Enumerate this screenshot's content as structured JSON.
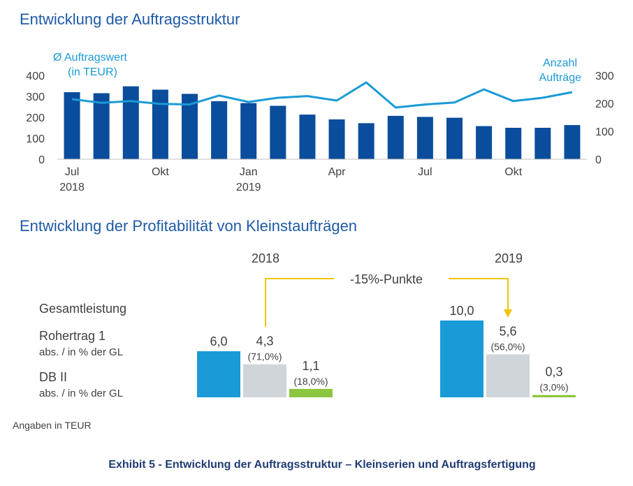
{
  "chart_data": [
    {
      "type": "bar+line",
      "title": "Entwicklung der Auftragsstruktur",
      "y_left_label": [
        "Ø Auftragswert",
        "(in TEUR)"
      ],
      "y_right_label": [
        "Anzahl",
        "Aufträge"
      ],
      "y_left_ticks": [
        "400",
        "300",
        "200",
        "100",
        "0"
      ],
      "y_right_ticks": [
        "300",
        "200",
        "100",
        "0"
      ],
      "ylim_left": [
        0,
        400
      ],
      "ylim_right": [
        0,
        300
      ],
      "x_labels": [
        {
          "index": 0,
          "line1": "Jul",
          "line2": "2018"
        },
        {
          "index": 3,
          "line1": "Okt",
          "line2": ""
        },
        {
          "index": 6,
          "line1": "Jan",
          "line2": "2019"
        },
        {
          "index": 9,
          "line1": "Apr",
          "line2": ""
        },
        {
          "index": 12,
          "line1": "Jul",
          "line2": ""
        },
        {
          "index": 15,
          "line1": "Okt",
          "line2": ""
        }
      ],
      "series": [
        {
          "kind": "bar",
          "axis": "left",
          "color": "#0a4d9c",
          "values": [
            320,
            315,
            348,
            332,
            312,
            277,
            268,
            255,
            213,
            190,
            172,
            207,
            202,
            198,
            158,
            150,
            150,
            163
          ]
        },
        {
          "kind": "line",
          "axis": "right",
          "color": "#1a9ad6",
          "values": [
            215,
            202,
            208,
            198,
            196,
            228,
            205,
            220,
            226,
            210,
            275,
            185,
            196,
            203,
            250,
            208,
            220,
            240
          ]
        }
      ]
    },
    {
      "type": "bar",
      "title": "Entwicklung der Profitabilität von Kleinstaufträgen",
      "row_labels": [
        {
          "main": "Gesamtleistung",
          "sub": ""
        },
        {
          "main": "Rohertrag 1",
          "sub": "abs. / in % der GL"
        },
        {
          "main": "DB II",
          "sub": "abs. / in % der GL"
        }
      ],
      "annotation": "-15%-Punkte",
      "groups": [
        {
          "year": "2018",
          "bars": [
            {
              "value": 6.0,
              "label": "6,0",
              "pct": "",
              "color": "#1a9ad6"
            },
            {
              "value": 4.3,
              "label": "4,3",
              "pct": "(71,0%)",
              "color": "#d0d5d9"
            },
            {
              "value": 1.1,
              "label": "1,1",
              "pct": "(18,0%)",
              "color": "#8cc63f"
            }
          ]
        },
        {
          "year": "2019",
          "bars": [
            {
              "value": 10.0,
              "label": "10,0",
              "pct": "",
              "color": "#1a9ad6"
            },
            {
              "value": 5.6,
              "label": "5,6",
              "pct": "(56,0%)",
              "color": "#d0d5d9"
            },
            {
              "value": 0.3,
              "label": "0,3",
              "pct": "(3,0%)",
              "color": "#8cc63f"
            }
          ]
        }
      ]
    }
  ],
  "note": "Angaben in TEUR",
  "caption": "Exhibit 5 - Entwicklung der Auftragsstruktur – Kleinserien und Auftragsfertigung",
  "colors": {
    "title": "#1e5aa8",
    "arrow": "#f2c400",
    "caption": "#1f3c74"
  }
}
